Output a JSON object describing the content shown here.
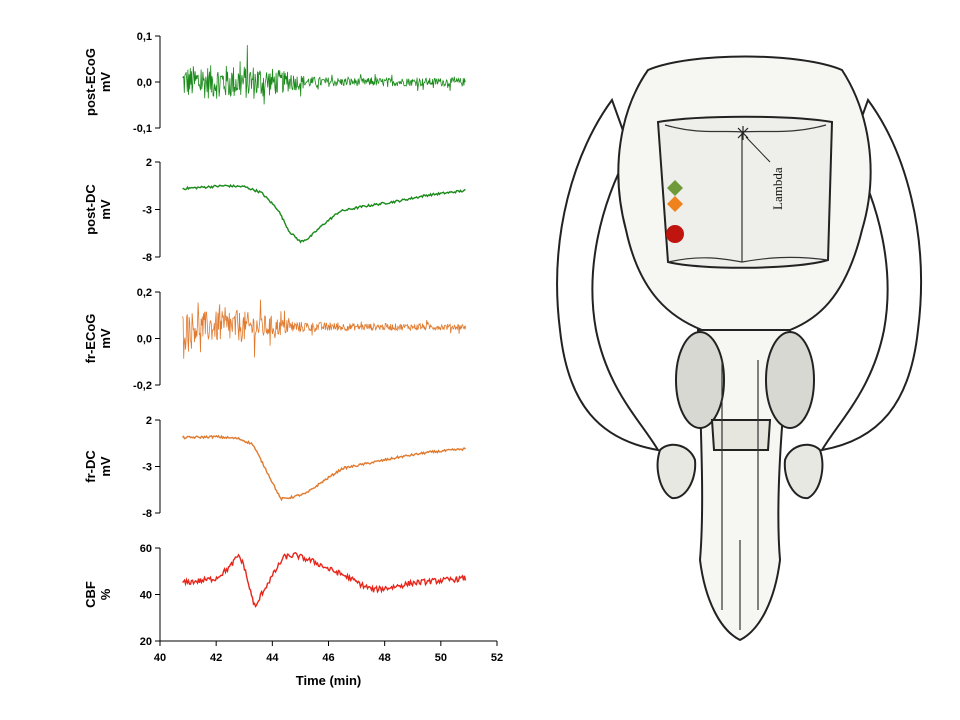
{
  "chart_data": {
    "type": "line",
    "x_axis": {
      "label": "Time (min)",
      "range": [
        40,
        52
      ],
      "ticks": [
        40,
        42,
        44,
        46,
        48,
        50,
        52
      ]
    },
    "trace_x_range": [
      40.8,
      50.9
    ],
    "panels": [
      {
        "id": "post-ecog",
        "ylabel": [
          "post-ECoG",
          "mV"
        ],
        "ylim": [
          -0.1,
          0.1
        ],
        "yticks": [
          "0,1",
          "0,0",
          "-0,1"
        ],
        "ytick_values": [
          0.1,
          0.0,
          -0.1
        ],
        "color": "#1a8a1a",
        "kind": "oscillation",
        "series": {
          "baseline_mv": 0.0,
          "envelope": [
            [
              40.8,
              0.08
            ],
            [
              43.5,
              0.085
            ],
            [
              44.5,
              0.05
            ],
            [
              45.5,
              0.025
            ],
            [
              47.0,
              0.02
            ],
            [
              50.9,
              0.02
            ]
          ]
        }
      },
      {
        "id": "post-dc",
        "ylabel": [
          "post-DC",
          "mV"
        ],
        "ylim": [
          -8,
          2
        ],
        "yticks": [
          "2",
          "-3",
          "-8"
        ],
        "ytick_values": [
          2,
          -3,
          -8
        ],
        "color": "#1a8a1a",
        "kind": "line",
        "points": [
          [
            40.8,
            -0.8
          ],
          [
            42.3,
            -0.5
          ],
          [
            43.0,
            -0.6
          ],
          [
            43.6,
            -1.2
          ],
          [
            44.2,
            -3.0
          ],
          [
            44.6,
            -5.3
          ],
          [
            45.0,
            -6.4
          ],
          [
            45.3,
            -6.0
          ],
          [
            45.8,
            -4.6
          ],
          [
            46.4,
            -3.2
          ],
          [
            47.2,
            -2.7
          ],
          [
            48.5,
            -2.1
          ],
          [
            49.5,
            -1.5
          ],
          [
            50.9,
            -1.0
          ]
        ]
      },
      {
        "id": "fr-ecog",
        "ylabel": [
          "fr-ECoG",
          "mV"
        ],
        "ylim": [
          -0.2,
          0.2
        ],
        "yticks": [
          "0,2",
          "0,0",
          "-0,2"
        ],
        "ytick_values": [
          0.2,
          0.0,
          -0.2
        ],
        "color": "#e07a2e",
        "kind": "oscillation",
        "series": {
          "baseline_mv": 0.05,
          "envelope": [
            [
              40.8,
              0.15
            ],
            [
              43.0,
              0.15
            ],
            [
              44.0,
              0.1
            ],
            [
              45.0,
              0.05
            ],
            [
              47.0,
              0.035
            ],
            [
              50.9,
              0.03
            ]
          ]
        }
      },
      {
        "id": "fr-dc",
        "ylabel": [
          "fr-DC",
          "mV"
        ],
        "ylim": [
          -8,
          2
        ],
        "yticks": [
          "2",
          "-3",
          "-8"
        ],
        "ytick_values": [
          2,
          -3,
          -8
        ],
        "color": "#e07a2e",
        "kind": "line",
        "points": [
          [
            40.8,
            0.1
          ],
          [
            42.0,
            0.2
          ],
          [
            42.8,
            0.0
          ],
          [
            43.3,
            -0.6
          ],
          [
            43.8,
            -3.5
          ],
          [
            44.3,
            -6.5
          ],
          [
            44.7,
            -6.3
          ],
          [
            45.2,
            -5.9
          ],
          [
            45.8,
            -4.6
          ],
          [
            46.5,
            -3.2
          ],
          [
            47.5,
            -2.6
          ],
          [
            48.5,
            -2.0
          ],
          [
            49.5,
            -1.5
          ],
          [
            50.9,
            -1.1
          ]
        ]
      },
      {
        "id": "cbf",
        "ylabel": [
          "CBF",
          "%"
        ],
        "ylim": [
          20,
          60
        ],
        "yticks": [
          "60",
          "40",
          "20"
        ],
        "ytick_values": [
          60,
          40,
          20
        ],
        "color": "#e8251a",
        "kind": "line",
        "noise": 1.2,
        "points": [
          [
            40.8,
            45
          ],
          [
            41.5,
            46
          ],
          [
            42.0,
            47
          ],
          [
            42.5,
            52
          ],
          [
            42.8,
            57
          ],
          [
            43.0,
            52
          ],
          [
            43.2,
            42
          ],
          [
            43.4,
            34
          ],
          [
            43.6,
            40
          ],
          [
            44.0,
            48
          ],
          [
            44.4,
            56
          ],
          [
            44.8,
            57
          ],
          [
            45.5,
            54
          ],
          [
            46.0,
            51
          ],
          [
            46.6,
            48
          ],
          [
            47.2,
            44
          ],
          [
            47.6,
            42
          ],
          [
            48.2,
            43
          ],
          [
            49.0,
            45
          ],
          [
            50.0,
            46
          ],
          [
            50.9,
            47
          ]
        ]
      }
    ]
  },
  "skull_diagram": {
    "label": "Lambda",
    "markers": [
      {
        "shape": "diamond",
        "color": "#6f9a3a"
      },
      {
        "shape": "diamond",
        "color": "#f0821e"
      },
      {
        "shape": "circle",
        "color": "#c0140e"
      }
    ],
    "colors": {
      "outline": "#222222",
      "fill": "#f6f6f2"
    }
  }
}
